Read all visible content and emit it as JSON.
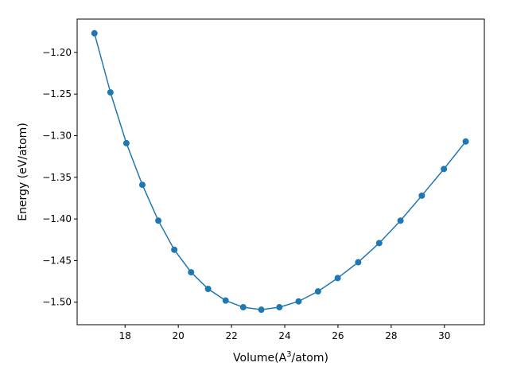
{
  "chart_data": {
    "type": "line",
    "title": "",
    "xlabel": "Volume(A",
    "xlabel_sup": "3",
    "xlabel_suffix": "/atom)",
    "ylabel": "Energy (eV/atom)",
    "xlim": [
      16.2,
      31.5
    ],
    "ylim": [
      -1.527,
      -1.16
    ],
    "xticks": [
      18,
      20,
      22,
      24,
      26,
      28,
      30
    ],
    "xtick_labels": [
      "18",
      "20",
      "22",
      "24",
      "26",
      "28",
      "30"
    ],
    "yticks": [
      -1.5,
      -1.45,
      -1.4,
      -1.35,
      -1.3,
      -1.25,
      -1.2
    ],
    "ytick_labels": [
      "−1.50",
      "−1.45",
      "−1.40",
      "−1.35",
      "−1.30",
      "−1.25",
      "−1.20"
    ],
    "grid": false,
    "series": [
      {
        "color": "#1f77b4",
        "marker": "circle",
        "x": [
          16.85,
          17.45,
          18.05,
          18.65,
          19.25,
          19.85,
          20.48,
          21.12,
          21.78,
          22.44,
          23.12,
          23.8,
          24.52,
          25.25,
          25.99,
          26.76,
          27.55,
          28.35,
          29.15,
          29.98,
          30.8
        ],
        "y": [
          -1.177,
          -1.248,
          -1.309,
          -1.359,
          -1.402,
          -1.437,
          -1.464,
          -1.484,
          -1.498,
          -1.506,
          -1.509,
          -1.506,
          -1.499,
          -1.487,
          -1.471,
          -1.452,
          -1.429,
          -1.402,
          -1.372,
          -1.34,
          -1.307
        ]
      }
    ]
  }
}
